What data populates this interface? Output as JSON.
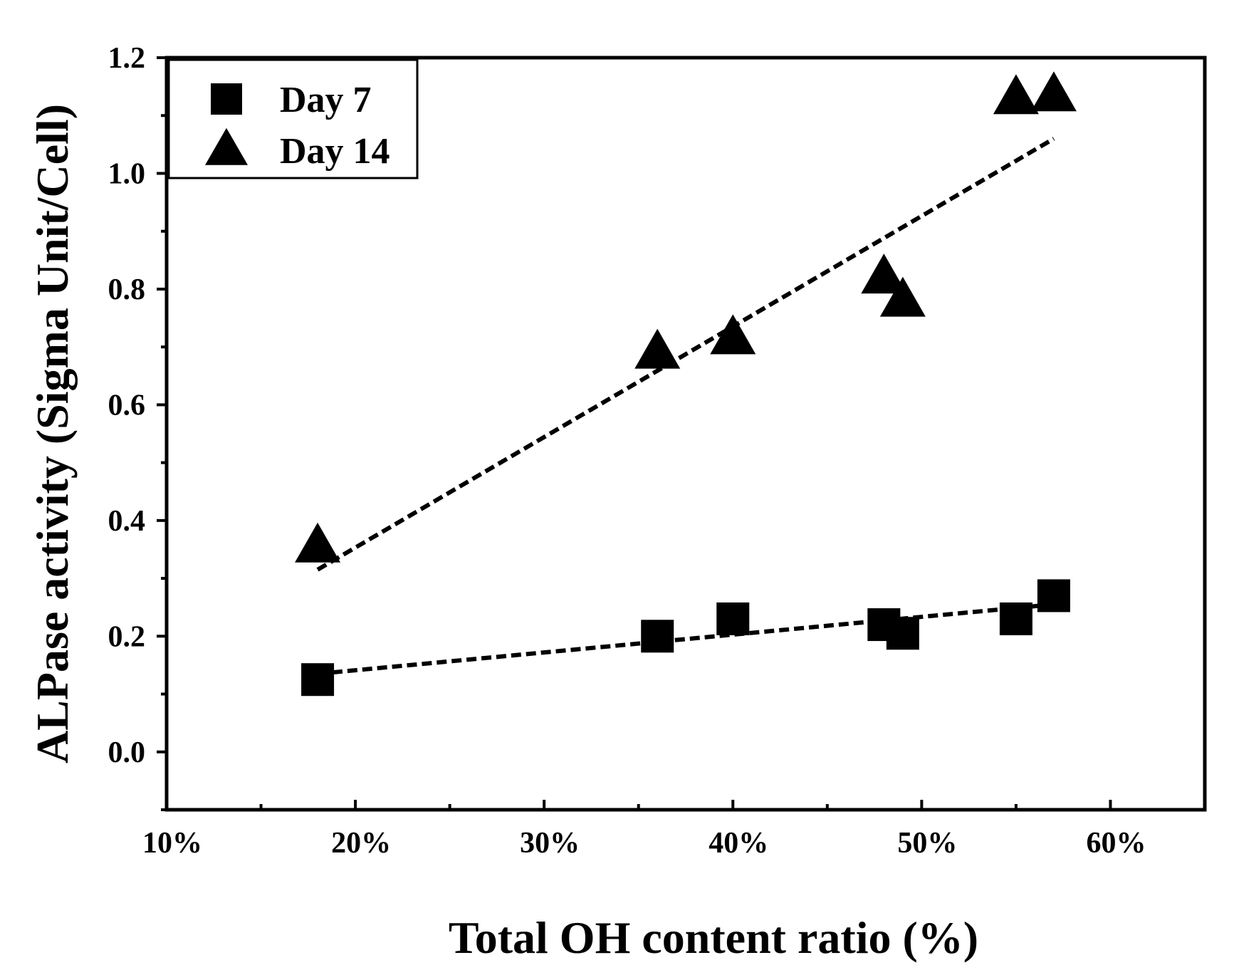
{
  "chart_data": {
    "type": "scatter",
    "title": "",
    "xlabel": "Total OH content ratio (%)",
    "ylabel": "ALPase activity (Sigma Unit/Cell)",
    "xlim": [
      10,
      65
    ],
    "ylim": [
      -0.1,
      1.2
    ],
    "x_ticks": [
      {
        "value": 10,
        "label": "10%"
      },
      {
        "value": 20,
        "label": "20%"
      },
      {
        "value": 30,
        "label": "30%"
      },
      {
        "value": 40,
        "label": "40%"
      },
      {
        "value": 50,
        "label": "50%"
      },
      {
        "value": 60,
        "label": "60%"
      }
    ],
    "x_minor_ticks": [
      15,
      25,
      35,
      45,
      55,
      65
    ],
    "y_ticks": [
      {
        "value": 0.0,
        "label": "0.0"
      },
      {
        "value": 0.2,
        "label": "0.2"
      },
      {
        "value": 0.4,
        "label": "0.4"
      },
      {
        "value": 0.6,
        "label": "0.6"
      },
      {
        "value": 0.8,
        "label": "0.8"
      },
      {
        "value": 1.0,
        "label": "1.0"
      },
      {
        "value": 1.2,
        "label": "1.2"
      }
    ],
    "y_minor_ticks": [
      -0.1,
      0.1,
      0.3,
      0.5,
      0.7,
      0.9,
      1.1
    ],
    "grid": false,
    "legend_position": "top-left",
    "series": [
      {
        "name": "Day 7",
        "marker": "square",
        "color": "#000000",
        "x": [
          18,
          36,
          40,
          48,
          49,
          55,
          57
        ],
        "y": [
          0.125,
          0.2,
          0.23,
          0.22,
          0.205,
          0.23,
          0.27
        ],
        "trendline": {
          "x": [
            18,
            57
          ],
          "y": [
            0.135,
            0.255
          ]
        }
      },
      {
        "name": "Day 14",
        "marker": "triangle",
        "color": "#000000",
        "x": [
          18,
          36,
          40,
          48,
          49,
          55,
          57
        ],
        "y": [
          0.355,
          0.69,
          0.715,
          0.82,
          0.78,
          1.13,
          1.135
        ],
        "trendline": {
          "x": [
            18,
            57
          ],
          "y": [
            0.315,
            1.06
          ]
        }
      }
    ]
  }
}
